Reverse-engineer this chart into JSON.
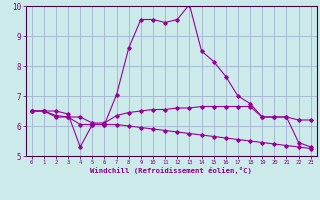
{
  "xlabel": "Windchill (Refroidissement éolien,°C)",
  "bg_color": "#cceaea",
  "line_color": "#990099",
  "grid_color": "#99aacc",
  "xlim": [
    -0.5,
    23.5
  ],
  "ylim": [
    5.0,
    10.0
  ],
  "yticks": [
    5,
    6,
    7,
    8,
    9,
    10
  ],
  "xticks": [
    0,
    1,
    2,
    3,
    4,
    5,
    6,
    7,
    8,
    9,
    10,
    11,
    12,
    13,
    14,
    15,
    16,
    17,
    18,
    19,
    20,
    21,
    22,
    23
  ],
  "line1_x": [
    0,
    1,
    2,
    3,
    4,
    5,
    6,
    7,
    8,
    9,
    10,
    11,
    12,
    13,
    14,
    15,
    16,
    17,
    18,
    19,
    20,
    21,
    22,
    23
  ],
  "line1_y": [
    6.5,
    6.5,
    6.5,
    6.4,
    5.3,
    6.05,
    6.05,
    7.05,
    8.6,
    9.55,
    9.55,
    9.45,
    9.55,
    10.05,
    8.5,
    8.15,
    7.65,
    7.0,
    6.75,
    6.3,
    6.3,
    6.3,
    5.45,
    5.3
  ],
  "line2_x": [
    0,
    1,
    2,
    3,
    4,
    5,
    6,
    7,
    8,
    9,
    10,
    11,
    12,
    13,
    14,
    15,
    16,
    17,
    18,
    19,
    20,
    21,
    22,
    23
  ],
  "line2_y": [
    6.5,
    6.5,
    6.35,
    6.3,
    6.3,
    6.1,
    6.1,
    6.35,
    6.45,
    6.5,
    6.55,
    6.55,
    6.6,
    6.6,
    6.65,
    6.65,
    6.65,
    6.65,
    6.65,
    6.3,
    6.3,
    6.3,
    6.2,
    6.2
  ],
  "line3_x": [
    0,
    1,
    2,
    3,
    4,
    5,
    6,
    7,
    8,
    9,
    10,
    11,
    12,
    13,
    14,
    15,
    16,
    17,
    18,
    19,
    20,
    21,
    22,
    23
  ],
  "line3_y": [
    6.5,
    6.5,
    6.3,
    6.3,
    6.05,
    6.05,
    6.05,
    6.05,
    6.0,
    5.95,
    5.9,
    5.85,
    5.8,
    5.75,
    5.7,
    5.65,
    5.6,
    5.55,
    5.5,
    5.45,
    5.4,
    5.35,
    5.3,
    5.25
  ],
  "spine_color": "#440044",
  "tick_color": "#440044",
  "label_color": "#880088"
}
